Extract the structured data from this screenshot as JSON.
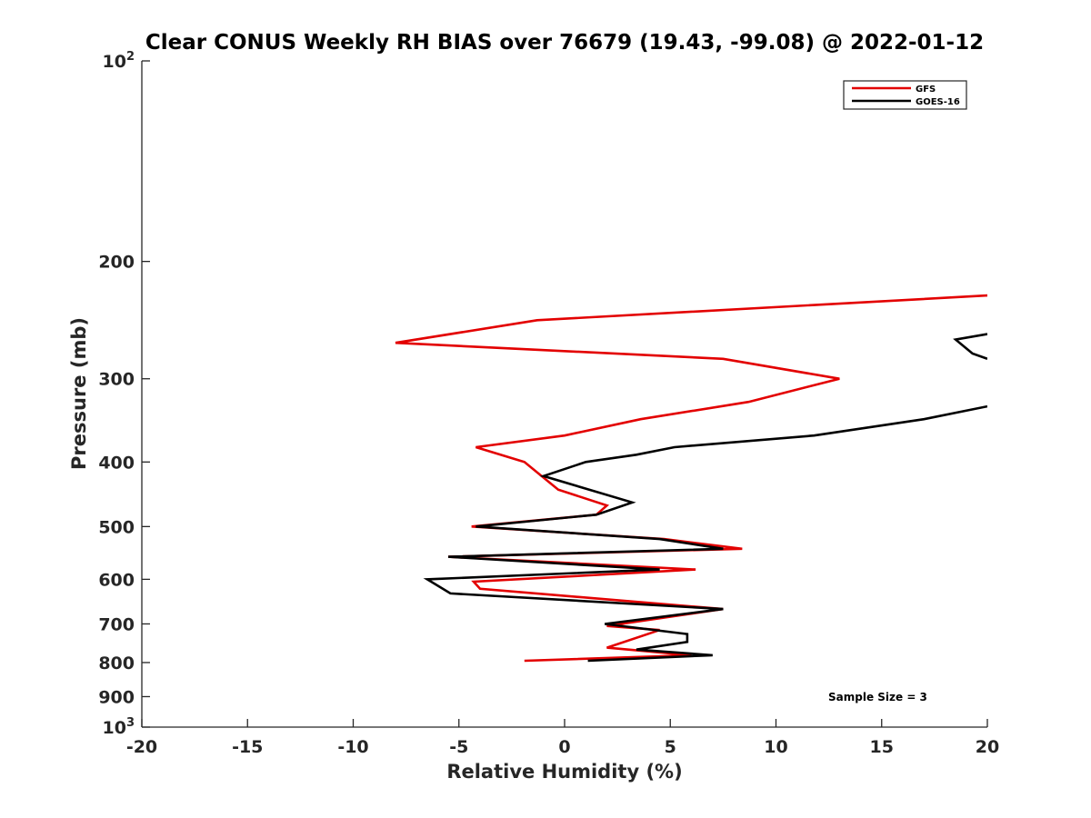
{
  "chart_data": {
    "type": "line",
    "title": "Clear CONUS Weekly RH BIAS over 76679 (19.43, -99.08) @ 2022-01-12",
    "xlabel": "Relative Humidity (%)",
    "ylabel": "Pressure (mb)",
    "xlim": [
      -20,
      20
    ],
    "ylim": [
      100,
      1000
    ],
    "y_scale": "log",
    "y_reversed": true,
    "grid": false,
    "legend_position": "top-right",
    "x_ticks": [
      "-20",
      "-15",
      "-10",
      "-5",
      "0",
      "5",
      "10",
      "15",
      "20"
    ],
    "x_tick_values": [
      -20,
      -15,
      -10,
      -5,
      0,
      5,
      10,
      15,
      20
    ],
    "y_ticks": [
      {
        "value": 100,
        "base": "10",
        "exp": "2"
      },
      {
        "value": 200,
        "label": "200"
      },
      {
        "value": 300,
        "label": "300"
      },
      {
        "value": 400,
        "label": "400"
      },
      {
        "value": 500,
        "label": "500"
      },
      {
        "value": 600,
        "label": "600"
      },
      {
        "value": 700,
        "label": "700"
      },
      {
        "value": 800,
        "label": "800"
      },
      {
        "value": 900,
        "label": "900"
      },
      {
        "value": 1000,
        "base": "10",
        "exp": "3"
      }
    ],
    "annotation": "Sample Size = 3",
    "series": [
      {
        "name": "GFS",
        "color": "#e30000",
        "points": [
          [
            20,
            225
          ],
          [
            -1.3,
            245
          ],
          [
            -8,
            265
          ],
          [
            7.5,
            280
          ],
          [
            13,
            300
          ],
          [
            8.7,
            325
          ],
          [
            3.6,
            345
          ],
          [
            0,
            365
          ],
          [
            -4.2,
            380
          ],
          [
            -1.9,
            400
          ],
          [
            -0.3,
            440
          ],
          [
            2,
            465
          ],
          [
            1.5,
            480
          ],
          [
            -4.4,
            500
          ],
          [
            4.7,
            522
          ],
          [
            8.4,
            540
          ],
          [
            -5.5,
            555
          ],
          [
            6.2,
            580
          ],
          [
            -4.3,
            605
          ],
          [
            -4,
            620
          ],
          [
            7.5,
            665
          ],
          [
            2,
            705
          ],
          [
            4.5,
            715
          ],
          [
            2,
            760
          ],
          [
            6,
            780
          ],
          [
            -1.9,
            795
          ]
        ]
      },
      {
        "name": "GOES-16",
        "color": "#000000",
        "points": [
          [
            20,
            257
          ],
          [
            18.5,
            262
          ],
          [
            19.3,
            275
          ],
          [
            20,
            280
          ],
          null,
          [
            20,
            330
          ],
          [
            17,
            345
          ],
          [
            11.8,
            365
          ],
          [
            5.2,
            380
          ],
          [
            3.4,
            390
          ],
          [
            1,
            400
          ],
          [
            -1,
            420
          ],
          [
            3.2,
            460
          ],
          [
            1.5,
            480
          ],
          [
            -4.2,
            500
          ],
          [
            4.5,
            522
          ],
          [
            7.5,
            540
          ],
          [
            -5.5,
            555
          ],
          [
            4.5,
            580
          ],
          [
            -6.5,
            600
          ],
          [
            -5.4,
            630
          ],
          [
            7.5,
            665
          ],
          [
            1.9,
            700
          ],
          [
            5.8,
            725
          ],
          [
            5.8,
            745
          ],
          [
            3.4,
            765
          ],
          [
            7,
            780
          ],
          [
            1.1,
            795
          ]
        ]
      }
    ]
  }
}
